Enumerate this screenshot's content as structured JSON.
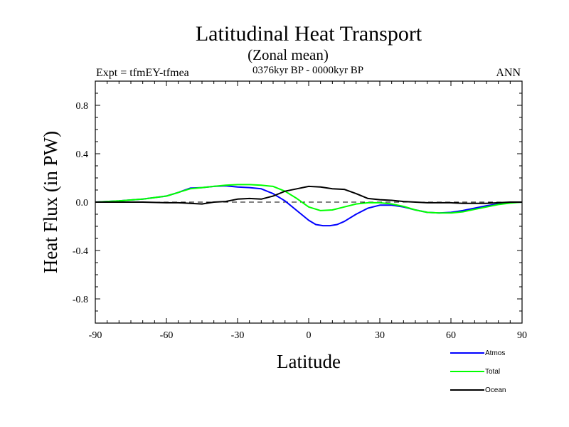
{
  "chart_data": {
    "type": "line",
    "title": "Latitudinal Heat Transport",
    "subtitle": "(Zonal mean)",
    "left_string": "Expt = tfmEY-tfmea",
    "center_string": "0376kyr BP - 0000kyr BP",
    "right_string": "ANN",
    "xlabel": "Latitude",
    "ylabel": "Heat Flux (in PW)",
    "xlim": [
      -90,
      90
    ],
    "ylim": [
      -1.0,
      1.0
    ],
    "x_ticks": [
      -90,
      -60,
      -30,
      0,
      30,
      60,
      90
    ],
    "x_tick_labels": [
      "-90",
      "-60",
      "-30",
      "0",
      "30",
      "60",
      "90"
    ],
    "y_ticks": [
      -0.8,
      -0.4,
      0.0,
      0.4,
      0.8
    ],
    "y_tick_labels": [
      "-0.8",
      "-0.4",
      "0.0",
      "0.4",
      "0.8"
    ],
    "zero_line": "dashed",
    "grid": false,
    "legend_position": "bottom-right",
    "series": [
      {
        "name": "Atmos",
        "color": "#0000ff",
        "x": [
          -90,
          -80,
          -70,
          -60,
          -55,
          -50,
          -45,
          -40,
          -35,
          -30,
          -25,
          -20,
          -15,
          -10,
          -5,
          0,
          3,
          6,
          9,
          12,
          15,
          20,
          25,
          30,
          35,
          40,
          45,
          50,
          55,
          60,
          65,
          70,
          75,
          80,
          85,
          90
        ],
        "y": [
          0.0,
          0.01,
          0.025,
          0.05,
          0.08,
          0.115,
          0.12,
          0.13,
          0.135,
          0.125,
          0.12,
          0.11,
          0.07,
          0.01,
          -0.07,
          -0.15,
          -0.185,
          -0.195,
          -0.195,
          -0.185,
          -0.16,
          -0.1,
          -0.05,
          -0.025,
          -0.025,
          -0.04,
          -0.065,
          -0.085,
          -0.09,
          -0.085,
          -0.07,
          -0.05,
          -0.03,
          -0.015,
          -0.005,
          0.0
        ]
      },
      {
        "name": "Total",
        "color": "#00ff00",
        "x": [
          -90,
          -80,
          -70,
          -60,
          -55,
          -50,
          -45,
          -40,
          -35,
          -30,
          -25,
          -20,
          -15,
          -10,
          -5,
          0,
          5,
          10,
          15,
          20,
          25,
          30,
          35,
          40,
          45,
          50,
          55,
          60,
          65,
          70,
          75,
          80,
          85,
          90
        ],
        "y": [
          0.0,
          0.01,
          0.025,
          0.05,
          0.08,
          0.11,
          0.12,
          0.13,
          0.14,
          0.145,
          0.145,
          0.14,
          0.13,
          0.09,
          0.03,
          -0.04,
          -0.07,
          -0.065,
          -0.04,
          -0.015,
          -0.005,
          -0.005,
          -0.015,
          -0.035,
          -0.065,
          -0.085,
          -0.09,
          -0.09,
          -0.08,
          -0.06,
          -0.04,
          -0.02,
          -0.008,
          0.0
        ]
      },
      {
        "name": "Ocean",
        "color": "#000000",
        "x": [
          -90,
          -80,
          -70,
          -60,
          -55,
          -50,
          -45,
          -40,
          -35,
          -30,
          -25,
          -20,
          -15,
          -10,
          -5,
          0,
          5,
          10,
          15,
          20,
          25,
          30,
          35,
          40,
          45,
          50,
          55,
          60,
          65,
          70,
          75,
          80,
          85,
          90
        ],
        "y": [
          0.0,
          0.0,
          0.0,
          -0.005,
          -0.005,
          -0.01,
          -0.015,
          0.0,
          0.005,
          0.025,
          0.03,
          0.025,
          0.05,
          0.09,
          0.11,
          0.13,
          0.125,
          0.11,
          0.105,
          0.07,
          0.03,
          0.02,
          0.015,
          0.005,
          0.0,
          -0.005,
          -0.005,
          -0.005,
          -0.01,
          -0.01,
          -0.01,
          -0.005,
          0.0,
          0.0
        ]
      }
    ]
  }
}
